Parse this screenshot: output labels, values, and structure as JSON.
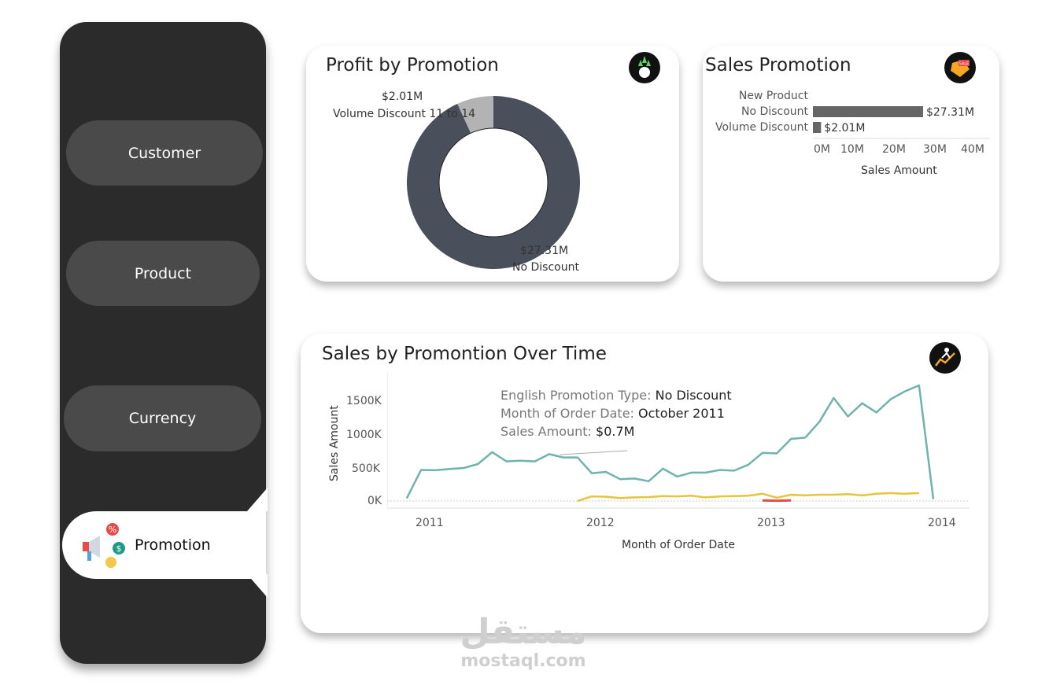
{
  "sidebar": {
    "items": [
      {
        "label": "Customer",
        "icon": null,
        "active": false
      },
      {
        "label": "Product",
        "icon": null,
        "active": false
      },
      {
        "label": "Currency",
        "icon": null,
        "active": false
      },
      {
        "label": "Promotion",
        "icon": "megaphone-discount-icon",
        "active": true
      }
    ]
  },
  "profit_card": {
    "title": "Profit by Promotion",
    "icon": "growth-arrows-icon",
    "labels": [
      {
        "value": "$2.01M",
        "name": "Volume Discount 11 to 14"
      },
      {
        "value": "$27.31M",
        "name": "No Discount"
      }
    ]
  },
  "sales_promo_card": {
    "title": "Sales Promotion",
    "icon": "sale-tag-icon",
    "xlabel": "Sales Amount",
    "categories": [
      "New Product",
      "No Discount",
      "Volume Discount"
    ],
    "value_labels": [
      "",
      "$27.31M",
      "$2.01M"
    ],
    "ticks": [
      "0M",
      "10M",
      "20M",
      "30M",
      "40M"
    ]
  },
  "time_card": {
    "title": "Sales by Promontion Over Time",
    "icon": "runner-chart-icon",
    "ylabel": "Sales Amount",
    "xlabel": "Month of Order Date",
    "yticks": [
      "1500K",
      "1000K",
      "500K",
      "0K"
    ],
    "xticks": [
      "2011",
      "2012",
      "2013",
      "2014"
    ],
    "tooltip": {
      "rows": [
        {
          "key": "English Promotion Type:",
          "value": "No Discount"
        },
        {
          "key": "Month of Order Date:",
          "value": "October 2011"
        },
        {
          "key": "Sales Amount:",
          "value": "$0.7M"
        }
      ]
    }
  },
  "watermark": {
    "arabic": "مستقل",
    "latin": "mostaql.com"
  },
  "colors": {
    "sidebar": "#2b2b2b",
    "nav_button": "#4a4a4a",
    "donut_main": "#4a505b",
    "donut_small": "#b3b3b3",
    "bar": "#666666",
    "line_no_discount": "#6fb3ad",
    "line_volume_discount": "#e8c33c",
    "line_other": "#e0504a"
  },
  "chart_data": [
    {
      "type": "pie",
      "title": "Profit by Promotion",
      "labels": [
        "No Discount",
        "Volume Discount 11 to 14"
      ],
      "values": [
        27.31,
        2.01
      ],
      "unit": "$M"
    },
    {
      "type": "bar",
      "title": "Sales Promotion",
      "orientation": "horizontal",
      "categories": [
        "New Product",
        "No Discount",
        "Volume Discount"
      ],
      "values": [
        0,
        27.31,
        2.01
      ],
      "xlabel": "Sales Amount",
      "xlim": [
        0,
        40
      ],
      "unit": "M"
    },
    {
      "type": "line",
      "title": "Sales by Promontion Over Time",
      "xlabel": "Month of Order Date",
      "ylabel": "Sales Amount",
      "ylim": [
        0,
        1800
      ],
      "unit": "K",
      "grid": false,
      "series": [
        {
          "x": [
            "2010-12",
            "2011-01",
            "2011-02",
            "2011-03",
            "2011-04",
            "2011-05",
            "2011-06",
            "2011-07",
            "2011-08",
            "2011-09",
            "2011-10",
            "2011-11",
            "2011-12",
            "2012-01",
            "2012-02",
            "2012-03",
            "2012-04",
            "2012-05",
            "2012-06",
            "2012-07",
            "2012-08",
            "2012-09",
            "2012-10",
            "2012-11",
            "2012-12",
            "2013-01",
            "2013-02",
            "2013-03",
            "2013-04",
            "2013-05",
            "2013-06",
            "2013-07",
            "2013-08",
            "2013-09",
            "2013-10",
            "2013-11",
            "2013-12",
            "2014-01"
          ],
          "values": [
            40,
            470,
            465,
            485,
            500,
            560,
            740,
            600,
            610,
            600,
            710,
            660,
            660,
            420,
            440,
            330,
            340,
            300,
            490,
            370,
            430,
            430,
            470,
            460,
            550,
            730,
            720,
            940,
            960,
            1200,
            1560,
            1280,
            1480,
            1340,
            1540,
            1660,
            1750,
            30
          ]
        },
        {
          "x": [
            "2011-12",
            "2012-01",
            "2012-02",
            "2012-03",
            "2012-04",
            "2012-05",
            "2012-06",
            "2012-07",
            "2012-08",
            "2012-09",
            "2012-10",
            "2012-11",
            "2012-12",
            "2013-01",
            "2013-02",
            "2013-03",
            "2013-04",
            "2013-05",
            "2013-06",
            "2013-07",
            "2013-08",
            "2013-09",
            "2013-10",
            "2013-11",
            "2013-12"
          ],
          "values": [
            0,
            70,
            65,
            45,
            55,
            60,
            75,
            70,
            80,
            55,
            70,
            75,
            80,
            110,
            50,
            95,
            85,
            95,
            95,
            105,
            85,
            110,
            120,
            110,
            120
          ]
        },
        {
          "x": [
            "2013-01",
            "2013-02",
            "2013-03"
          ],
          "values": [
            8,
            5,
            10
          ]
        }
      ]
    }
  ]
}
